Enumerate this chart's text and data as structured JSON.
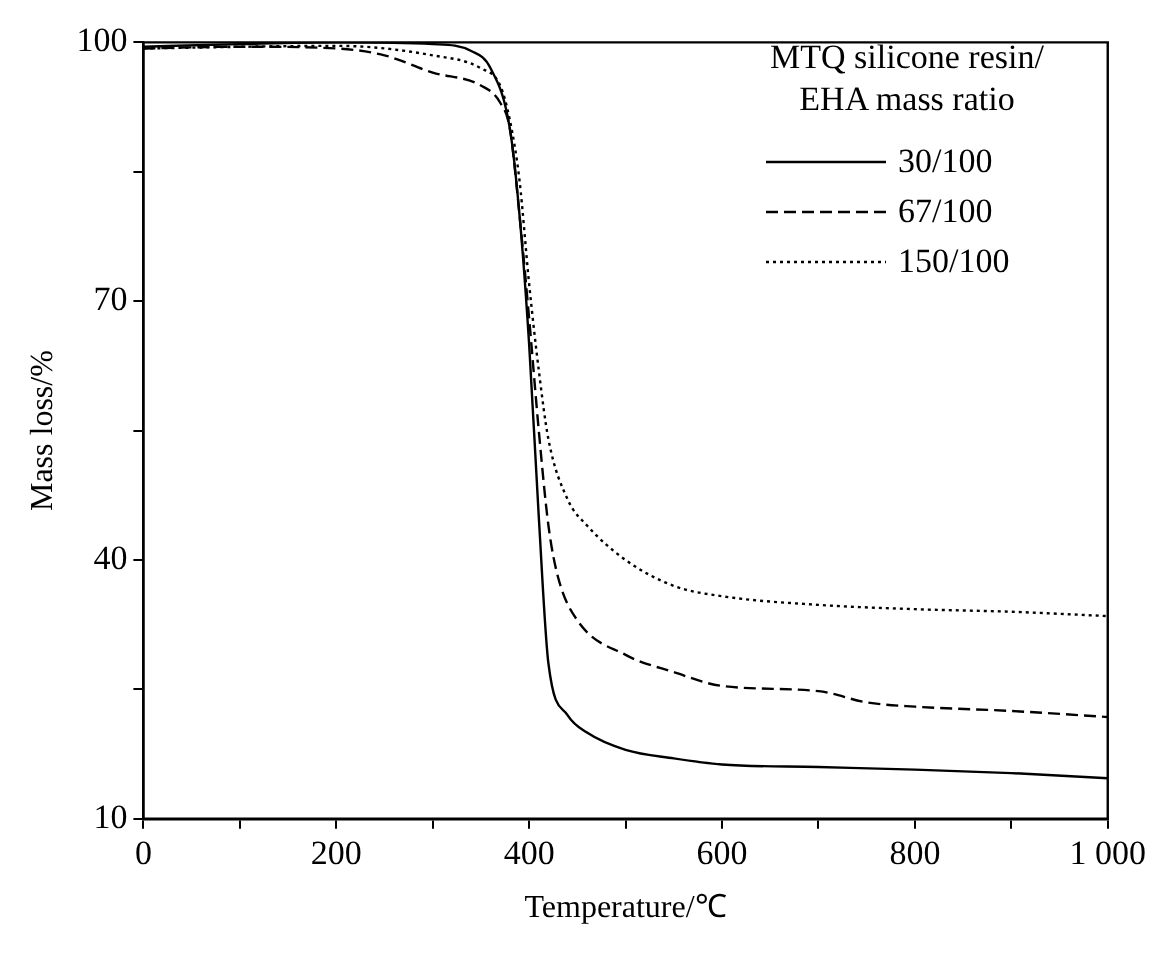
{
  "chart_data": {
    "type": "line",
    "xlabel": "Temperature/℃",
    "ylabel": "Mass loss/%",
    "legend_title": "MTQ silicone resin/ EHA mass ratio",
    "legend": "top right",
    "marker": "none",
    "grid": false,
    "xlim": [
      0,
      1000
    ],
    "xticks": [
      0,
      {
        "value": 100,
        "label": null
      },
      200,
      {
        "value": 300,
        "label": null
      },
      400,
      {
        "value": 500,
        "label": null
      },
      600,
      {
        "value": 700,
        "label": null
      },
      800,
      {
        "value": 900,
        "label": null
      },
      {
        "value": 1000,
        "label": "1 000"
      }
    ],
    "ylim": [
      10,
      100
    ],
    "yticks": [
      10,
      {
        "value": 25,
        "label": null
      },
      40,
      {
        "value": 55,
        "label": null
      },
      70,
      {
        "value": 85,
        "label": null
      },
      100
    ],
    "series": [
      {
        "name": "30/100",
        "color": "#000000",
        "line_style": "solid",
        "x": [
          0,
          100,
          200,
          300,
          340,
          360,
          380,
          390,
          400,
          410,
          420,
          440,
          460,
          500,
          550,
          600,
          700,
          800,
          900,
          1000
        ],
        "values": [
          99.5,
          99.8,
          100,
          99.8,
          99,
          97,
          90,
          80,
          65,
          45,
          28,
          22,
          20,
          18,
          17,
          16.3,
          16,
          15.7,
          15.3,
          14.7
        ]
      },
      {
        "name": "67/100",
        "color": "#000000",
        "line_style": "dashed",
        "x": [
          0,
          100,
          200,
          250,
          300,
          350,
          370,
          380,
          390,
          400,
          410,
          420,
          430,
          450,
          500,
          550,
          600,
          700,
          750,
          800,
          900,
          1000
        ],
        "values": [
          99.3,
          99.5,
          99.3,
          98.5,
          96.5,
          95,
          93,
          90,
          80,
          68,
          55,
          44,
          38,
          33,
          29,
          27,
          25.4,
          24.8,
          23.5,
          23,
          22.5,
          21.8
        ]
      },
      {
        "name": "150/100",
        "color": "#000000",
        "line_style": "dotted",
        "x": [
          0,
          200,
          300,
          350,
          370,
          380,
          390,
          400,
          410,
          420,
          440,
          460,
          500,
          550,
          600,
          700,
          800,
          900,
          1000
        ],
        "values": [
          99.3,
          99.6,
          98.5,
          97,
          95,
          91,
          84,
          72,
          62,
          54,
          47,
          44,
          40,
          37,
          35.8,
          34.8,
          34.3,
          34,
          33.5
        ]
      }
    ]
  }
}
